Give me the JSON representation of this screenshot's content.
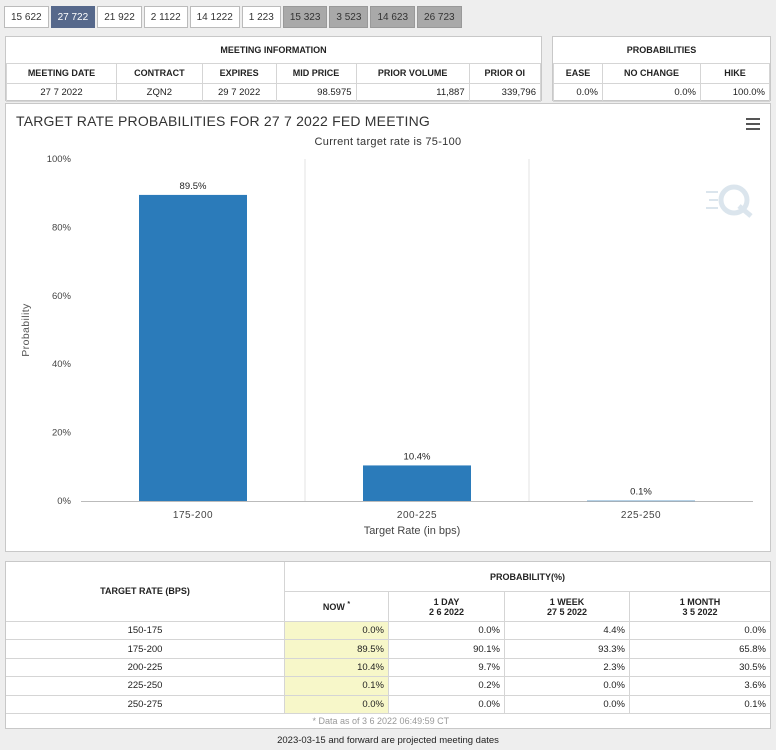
{
  "tabs": [
    {
      "label": "15 622",
      "state": "normal"
    },
    {
      "label": "27 722",
      "state": "active"
    },
    {
      "label": "21 922",
      "state": "normal"
    },
    {
      "label": "2 1122",
      "state": "normal"
    },
    {
      "label": "14 1222",
      "state": "normal"
    },
    {
      "label": "1 223",
      "state": "normal"
    },
    {
      "label": "15 323",
      "state": "grey"
    },
    {
      "label": "3 523",
      "state": "grey"
    },
    {
      "label": "14 623",
      "state": "grey"
    },
    {
      "label": "26 723",
      "state": "grey"
    }
  ],
  "meeting_info": {
    "header": "MEETING INFORMATION",
    "columns": [
      "MEETING DATE",
      "CONTRACT",
      "EXPIRES",
      "MID PRICE",
      "PRIOR VOLUME",
      "PRIOR OI"
    ],
    "row": [
      "27 7 2022",
      "ZQN2",
      "29 7 2022",
      "98.5975",
      "11,887",
      "339,796"
    ]
  },
  "probabilities": {
    "header": "PROBABILITIES",
    "columns": [
      "EASE",
      "NO CHANGE",
      "HIKE"
    ],
    "row": [
      "0.0%",
      "0.0%",
      "100.0%"
    ]
  },
  "chart_data": {
    "type": "bar",
    "title": "TARGET RATE PROBABILITIES FOR 27 7 2022 FED MEETING",
    "subtitle": "Current target rate is 75-100",
    "categories": [
      "175-200",
      "200-225",
      "225-250"
    ],
    "values": [
      89.5,
      10.4,
      0.1
    ],
    "data_labels": [
      "89.5%",
      "10.4%",
      "0.1%"
    ],
    "xlabel": "Target Rate (in bps)",
    "ylabel": "Probability",
    "ylim": [
      0,
      100
    ],
    "yticks": [
      "0%",
      "20%",
      "40%",
      "60%",
      "80%",
      "100%"
    ],
    "bar_color": "#2b7bba",
    "grid": true
  },
  "prob_table": {
    "target_header": "TARGET RATE (BPS)",
    "prob_header": "PROBABILITY(%)",
    "now_label": "NOW",
    "now_marker": "*",
    "periods": [
      {
        "label": "1 DAY",
        "date": "2 6 2022"
      },
      {
        "label": "1 WEEK",
        "date": "27 5 2022"
      },
      {
        "label": "1 MONTH",
        "date": "3 5 2022"
      }
    ],
    "rows": [
      {
        "rate": "150-175",
        "now": "0.0%",
        "day": "0.0%",
        "week": "4.4%",
        "month": "0.0%"
      },
      {
        "rate": "175-200",
        "now": "89.5%",
        "day": "90.1%",
        "week": "93.3%",
        "month": "65.8%"
      },
      {
        "rate": "200-225",
        "now": "10.4%",
        "day": "9.7%",
        "week": "2.3%",
        "month": "30.5%"
      },
      {
        "rate": "225-250",
        "now": "0.1%",
        "day": "0.2%",
        "week": "0.0%",
        "month": "3.6%"
      },
      {
        "rate": "250-275",
        "now": "0.0%",
        "day": "0.0%",
        "week": "0.0%",
        "month": "0.1%"
      }
    ],
    "data_note": "* Data as of 3 6 2022 06:49:59 CT"
  },
  "footer_note": "2023-03-15 and forward are projected meeting dates"
}
